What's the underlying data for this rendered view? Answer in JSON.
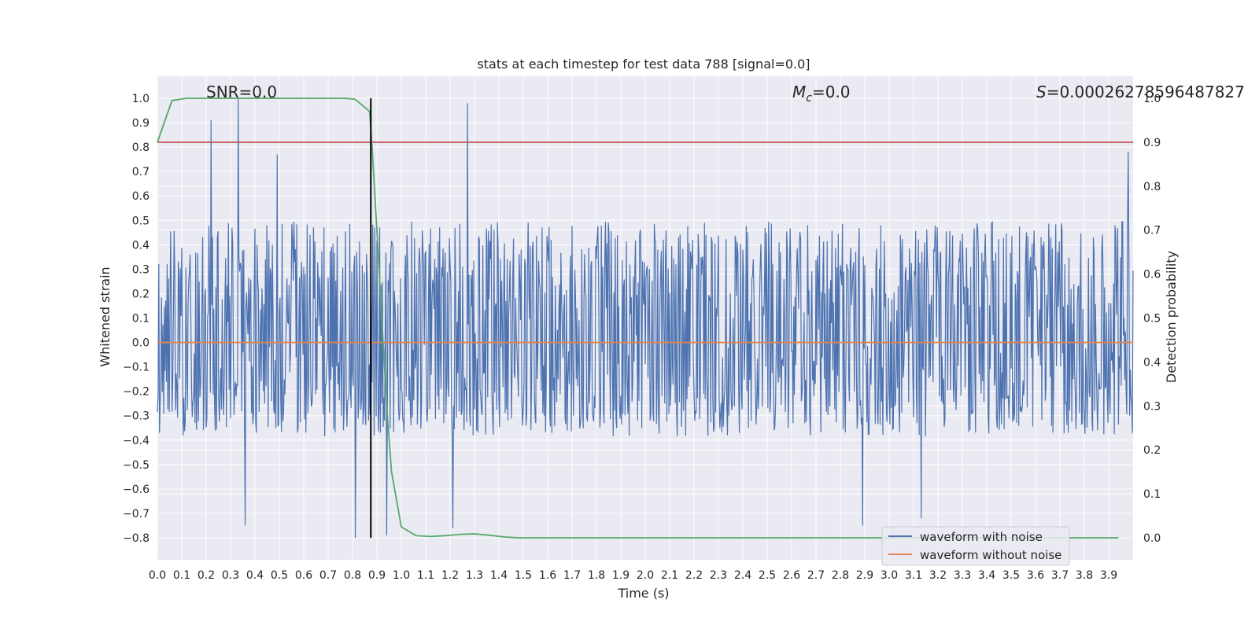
{
  "chart_data": {
    "type": "line",
    "title": "stats at each timestep for test data 788 [signal=0.0]",
    "xlabel": "Time (s)",
    "ylabel_left": "Whitened strain",
    "ylabel_right": "Detection probability",
    "xlim": [
      0.0,
      4.0
    ],
    "ylim_left": [
      -0.89,
      1.09
    ],
    "ylim_right": [
      -0.05,
      1.05
    ],
    "x_ticks": [
      0.0,
      0.1,
      0.2,
      0.3,
      0.4,
      0.5,
      0.6,
      0.7,
      0.8,
      0.9,
      1.0,
      1.1,
      1.2,
      1.3,
      1.4,
      1.5,
      1.6,
      1.7,
      1.8,
      1.9,
      2.0,
      2.1,
      2.2,
      2.3,
      2.4,
      2.5,
      2.6,
      2.7,
      2.8,
      2.9,
      3.0,
      3.1,
      3.2,
      3.3,
      3.4,
      3.5,
      3.6,
      3.7,
      3.8,
      3.9
    ],
    "x_tick_labels": [
      "0.0",
      "0.1",
      "0.2",
      "0.3",
      "0.4",
      "0.5",
      "0.6",
      "0.7",
      "0.8",
      "0.9",
      "1.0",
      "1.1",
      "1.2",
      "1.3",
      "1.4",
      "1.5",
      "1.6",
      "1.7",
      "1.8",
      "1.9",
      "2.0",
      "2.1",
      "2.2",
      "2.3",
      "2.4",
      "2.5",
      "2.6",
      "2.7",
      "2.8",
      "2.9",
      "3.0",
      "3.1",
      "3.2",
      "3.3",
      "3.4",
      "3.5",
      "3.6",
      "3.7",
      "3.8",
      "3.9"
    ],
    "y_left_ticks": [
      -0.8,
      -0.7,
      -0.6,
      -0.5,
      -0.4,
      -0.3,
      -0.2,
      -0.1,
      0.0,
      0.1,
      0.2,
      0.3,
      0.4,
      0.5,
      0.6,
      0.7,
      0.8,
      0.9,
      1.0
    ],
    "y_left_tick_labels": [
      "−0.8",
      "−0.7",
      "−0.6",
      "−0.5",
      "−0.4",
      "−0.3",
      "−0.2",
      "−0.1",
      "0.0",
      "0.1",
      "0.2",
      "0.3",
      "0.4",
      "0.5",
      "0.6",
      "0.7",
      "0.8",
      "0.9",
      "1.0"
    ],
    "y_right_ticks": [
      0.0,
      0.1,
      0.2,
      0.3,
      0.4,
      0.5,
      0.6,
      0.7,
      0.8,
      0.9,
      1.0
    ],
    "y_right_tick_labels": [
      "0.0",
      "0.1",
      "0.2",
      "0.3",
      "0.4",
      "0.5",
      "0.6",
      "0.7",
      "0.8",
      "0.9",
      "1.0"
    ],
    "grid": true,
    "legend_position": "bottom-right",
    "annotations": {
      "snr": "SNR=0.0",
      "mc_symbol": "M",
      "mc_sub": "c",
      "mc_value": "=0.0",
      "s_symbol": "S",
      "s_value": "=0.00026278596487827"
    },
    "series": [
      {
        "name": "waveform with noise",
        "axis": "left",
        "color": "#4c72b0",
        "description": "dense noise trace, approx. uniform over 0.0–4.0 s",
        "typical_range": [
          -0.35,
          0.45
        ],
        "envelope_peaks": [
          {
            "x": 0.22,
            "y": 0.91
          },
          {
            "x": 0.33,
            "y": 1.0
          },
          {
            "x": 0.49,
            "y": 0.77
          },
          {
            "x": 1.27,
            "y": 0.98
          },
          {
            "x": 0.36,
            "y": -0.75
          },
          {
            "x": 0.81,
            "y": -0.8
          },
          {
            "x": 0.94,
            "y": -0.79
          },
          {
            "x": 1.21,
            "y": -0.76
          },
          {
            "x": 2.89,
            "y": -0.75
          },
          {
            "x": 3.13,
            "y": -0.72
          },
          {
            "x": 3.98,
            "y": 0.78
          }
        ],
        "min": -0.8,
        "max": 1.0
      },
      {
        "name": "waveform without noise",
        "axis": "left",
        "color": "#dd8452",
        "x": [
          0.0,
          4.0
        ],
        "y": [
          0.0,
          0.0
        ]
      },
      {
        "name": "detection probability",
        "axis": "right",
        "color": "#55a868",
        "x": [
          0.0,
          0.06,
          0.12,
          0.18,
          0.3,
          0.5,
          0.7,
          0.76,
          0.81,
          0.87,
          0.88,
          0.9,
          0.92,
          0.94,
          0.96,
          1.0,
          1.06,
          1.12,
          1.18,
          1.24,
          1.3,
          1.36,
          1.42,
          1.48,
          1.6,
          2.0,
          2.5,
          3.0,
          3.5,
          3.94
        ],
        "y": [
          0.9,
          0.995,
          1.0,
          1.0,
          1.0,
          1.0,
          1.0,
          1.0,
          0.998,
          0.97,
          0.89,
          0.7,
          0.5,
          0.3,
          0.15,
          0.025,
          0.005,
          0.003,
          0.005,
          0.008,
          0.009,
          0.006,
          0.002,
          0.0,
          0.0,
          0.0,
          0.0,
          0.0,
          0.0,
          0.0
        ]
      }
    ],
    "threshold": {
      "axis": "right",
      "value": 0.9,
      "color": "#c44e52"
    },
    "marker_line": {
      "x": 0.875,
      "y_range": [
        -0.8,
        1.0
      ],
      "color": "#000000"
    }
  }
}
